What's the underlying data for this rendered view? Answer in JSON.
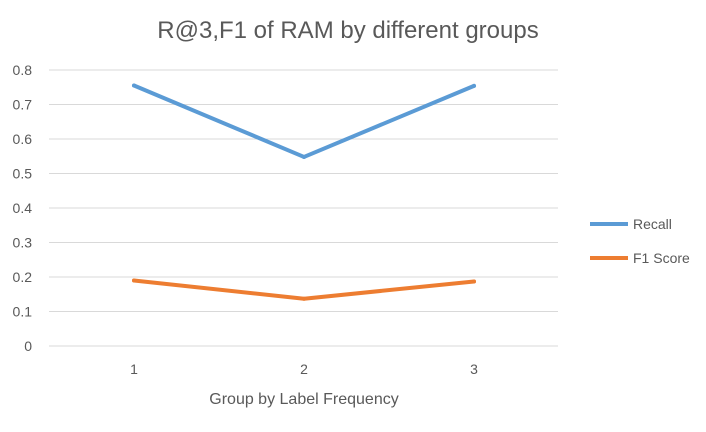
{
  "chart_data": {
    "type": "line",
    "title": "R@3,F1 of RAM by different groups",
    "xlabel": "Group by Label Frequency",
    "ylabel": "",
    "categories": [
      "1",
      "2",
      "3"
    ],
    "ylim": [
      0,
      0.8
    ],
    "yticks": [
      "0",
      "0.1",
      "0.2",
      "0.3",
      "0.4",
      "0.5",
      "0.6",
      "0.7",
      "0.8"
    ],
    "grid": true,
    "legend_position": "right",
    "series": [
      {
        "name": "Recall",
        "color": "#5b9bd5",
        "values": [
          0.755,
          0.548,
          0.754
        ]
      },
      {
        "name": "F1 Score",
        "color": "#ed7d31",
        "values": [
          0.19,
          0.137,
          0.187
        ]
      }
    ]
  }
}
